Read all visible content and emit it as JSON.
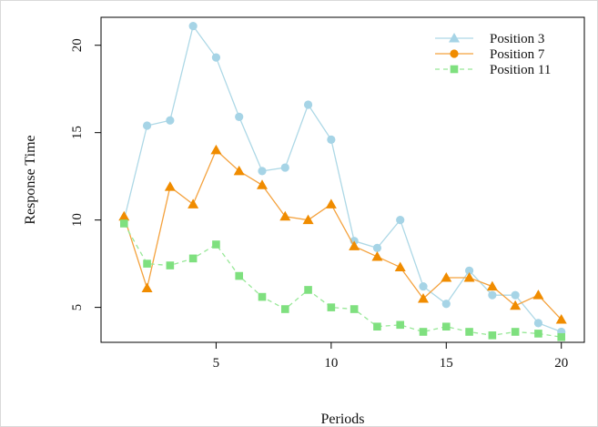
{
  "chart_data": {
    "type": "line",
    "xlabel": "Periods",
    "ylabel": "Response Time",
    "xlim": [
      0,
      21
    ],
    "ylim": [
      3,
      21.6
    ],
    "x_ticks": [
      5,
      10,
      15,
      20
    ],
    "y_ticks": [
      5,
      10,
      15,
      20
    ],
    "grid": false,
    "legend_position": "top-right",
    "x": [
      1,
      2,
      3,
      4,
      5,
      6,
      7,
      8,
      9,
      10,
      11,
      12,
      13,
      14,
      15,
      16,
      17,
      18,
      19,
      20
    ],
    "series": [
      {
        "name": "Position 3",
        "color": "#add8e6",
        "marker_color": "#a6d4e6",
        "line_style": "solid",
        "point_marker": "circle",
        "legend_marker": "triangle",
        "values": [
          10.0,
          15.4,
          15.7,
          21.1,
          19.3,
          15.9,
          12.8,
          13.0,
          16.6,
          14.6,
          8.8,
          8.4,
          10.0,
          6.2,
          5.2,
          7.1,
          5.7,
          5.7,
          4.1,
          3.6
        ]
      },
      {
        "name": "Position 7",
        "color": "#f4a23e",
        "marker_color": "#f08c00",
        "line_style": "solid",
        "point_marker": "triangle",
        "legend_marker": "circle",
        "values": [
          10.2,
          6.1,
          11.9,
          10.9,
          14.0,
          12.8,
          12.0,
          10.2,
          10.0,
          10.9,
          8.5,
          7.9,
          7.3,
          5.5,
          6.7,
          6.7,
          6.2,
          5.1,
          5.7,
          4.3
        ]
      },
      {
        "name": "Position 11",
        "color": "#98e898",
        "marker_color": "#7fe07f",
        "line_style": "dashed",
        "point_marker": "square",
        "legend_marker": "square",
        "values": [
          9.8,
          7.5,
          7.4,
          7.8,
          8.6,
          6.8,
          5.6,
          4.9,
          6.0,
          5.0,
          4.9,
          3.9,
          4.0,
          3.6,
          3.9,
          3.6,
          3.4,
          3.6,
          3.5,
          3.3
        ]
      }
    ]
  }
}
